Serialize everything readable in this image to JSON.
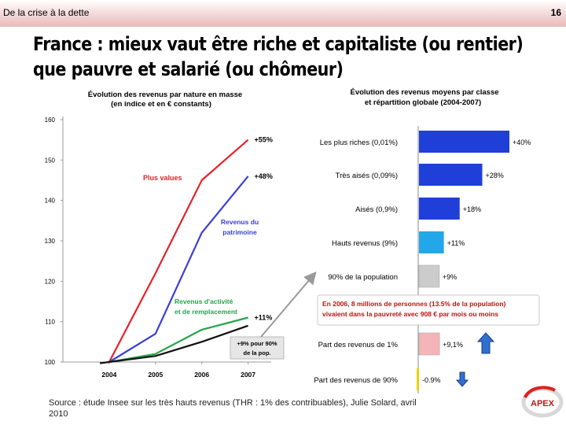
{
  "header": {
    "section": "De la crise à la dette",
    "page": "16"
  },
  "title": {
    "line1": "France : mieux vaut être riche et capitaliste (ou rentier)",
    "line2": "que pauvre et salarié (ou chômeur)"
  },
  "source": "Source : étude Insee sur les très hauts revenus (THR : 1% des contribuables), Julie Solard, avril 2010",
  "logo": {
    "text": "APEX"
  },
  "colors": {
    "red": "#e8202a",
    "blue": "#3a3fd6",
    "green": "#22a64a",
    "black": "#111111",
    "bar_blue": "#1f3fd8",
    "bar_light_blue": "#22a8e8",
    "bar_gray": "#cccccc",
    "bar_pink": "#f4b4b8",
    "bar_yellow": "#f0d000",
    "arrow_blue": "#2f6fd0"
  },
  "chart_data": [
    {
      "type": "line",
      "title": "Évolution des revenus par nature en masse (en indice et en € constants)",
      "title_lines": [
        "Évolution des revenus par nature en masse",
        "(en indice et  en € constants)"
      ],
      "x": [
        "2004",
        "2005",
        "2006",
        "2007"
      ],
      "x_values": [
        2004,
        2005,
        2006,
        2007
      ],
      "y_ticks": [
        "100",
        "110",
        "120",
        "130",
        "140",
        "150",
        "160"
      ],
      "ylim": [
        100,
        160
      ],
      "xlim": [
        2003,
        2007.5
      ],
      "series": [
        {
          "name": "Plus values",
          "color": "#e8202a",
          "points": [
            [
              2004,
              100
            ],
            [
              2005,
              122
            ],
            [
              2006,
              145
            ],
            [
              2006.5,
              150
            ],
            [
              2007,
              155
            ]
          ],
          "end_label": "+55%"
        },
        {
          "name": "Revenus du patrimoine",
          "name_lines": [
            "Revenus du",
            "patrimoine"
          ],
          "color": "#3a3fd6",
          "points": [
            [
              2004,
              100
            ],
            [
              2005,
              107
            ],
            [
              2006,
              132
            ],
            [
              2007,
              146
            ]
          ],
          "end_label": "+48%"
        },
        {
          "name": "Revenus d'activité et de remplacement",
          "name_lines": [
            "Revenus d'activité",
            "et de remplacement"
          ],
          "color": "#22a64a",
          "points": [
            [
              2004,
              100
            ],
            [
              2005,
              102
            ],
            [
              2006,
              108
            ],
            [
              2007,
              111
            ]
          ],
          "end_label": "+11%"
        },
        {
          "name": "",
          "color": "#111111",
          "points": [
            [
              2003.8,
              99.7
            ],
            [
              2005,
              101.5
            ],
            [
              2006,
              105
            ],
            [
              2007,
              109
            ]
          ],
          "end_label": ""
        }
      ],
      "callout": [
        "+9% pour 90%",
        "de la pop."
      ],
      "grid": false
    },
    {
      "type": "bar",
      "orientation": "horizontal",
      "title": "Évolution des revenus moyens par classe et répartition globale (2004-2007)",
      "title_lines": [
        "Évolution des revenus moyens par  classe",
        "et répartition globale (2004-2007)"
      ],
      "categories": [
        "Les plus riches (0,01%)",
        "Très aisés (0,09%)",
        "Aisés (0,9%)",
        "Hauts revenus (9%)",
        "90% de la population",
        "Part des revenus de 1%",
        "Part des revenus de 90%"
      ],
      "values": [
        40,
        28,
        18,
        11,
        9,
        9.1,
        -0.9
      ],
      "value_labels": [
        "+40%",
        "+28%",
        "+18%",
        "+11%",
        "+9%",
        "+9,1%",
        "-0.9%"
      ],
      "bar_colors": [
        "#1f3fd8",
        "#1f3fd8",
        "#1f3fd8",
        "#22a8e8",
        "#cccccc",
        "#f4b4b8",
        "#f0d000"
      ],
      "arrows": [
        "",
        "",
        "",
        "",
        "",
        "up",
        "down"
      ],
      "xlim": [
        0,
        40
      ]
    }
  ],
  "note": {
    "line1": "En 2006, 8 millions de personnes (13.5% de la population)",
    "line2": "vivaient dans la pauvreté avec 908 € par mois ou moins"
  }
}
